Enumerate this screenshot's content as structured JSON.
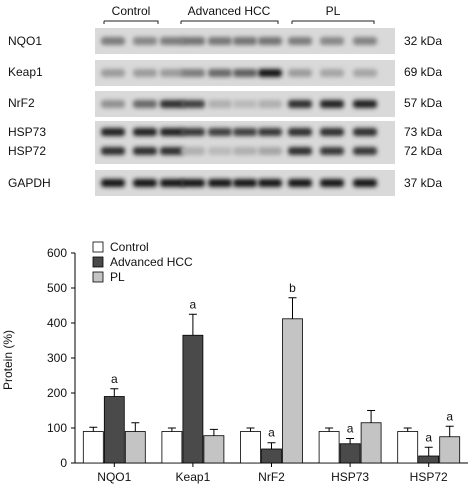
{
  "blot": {
    "groups": [
      "Control",
      "Advanced HCC",
      "PL"
    ],
    "rows": [
      {
        "name": "NQO1",
        "kda": "32 kDa"
      },
      {
        "name": "Keap1",
        "kda": "69 kDa"
      },
      {
        "name": "NrF2",
        "kda": "57 kDa"
      },
      {
        "name": "HSP73",
        "kda": "73 kDa"
      },
      {
        "name": "HSP72",
        "kda": "72 kDa"
      },
      {
        "name": "GAPDH",
        "kda": "37 kDa"
      }
    ],
    "intensity": {
      "NQO1": [
        0.45,
        0.4,
        0.45,
        0.5,
        0.48,
        0.5,
        0.5,
        0.45,
        0.4,
        0.42
      ],
      "Keap1": [
        0.3,
        0.3,
        0.3,
        0.45,
        0.55,
        0.6,
        0.95,
        0.3,
        0.25,
        0.25
      ],
      "NrF2": [
        0.35,
        0.55,
        0.85,
        0.75,
        0.2,
        0.15,
        0.2,
        0.85,
        0.9,
        0.9
      ],
      "HSP73": [
        0.9,
        0.9,
        0.9,
        0.8,
        0.75,
        0.75,
        0.8,
        0.85,
        0.85,
        0.85
      ],
      "HSP72": [
        0.85,
        0.85,
        0.85,
        0.2,
        0.15,
        0.2,
        0.25,
        0.85,
        0.8,
        0.8
      ],
      "GAPDH": [
        0.95,
        0.95,
        0.95,
        0.95,
        0.95,
        0.95,
        0.95,
        0.95,
        0.95,
        0.95
      ]
    }
  },
  "chart_data": {
    "type": "bar",
    "categories": [
      "NQO1",
      "Keap1",
      "NrF2",
      "HSP73",
      "HSP72"
    ],
    "series": [
      {
        "name": "Control",
        "values": [
          90,
          90,
          90,
          90,
          90
        ],
        "errors": [
          12,
          10,
          10,
          10,
          10
        ],
        "color": "#ffffff"
      },
      {
        "name": "Advanced HCC",
        "values": [
          190,
          365,
          40,
          55,
          20
        ],
        "errors": [
          22,
          60,
          18,
          15,
          25
        ],
        "color": "#4a4a4a"
      },
      {
        "name": "PL",
        "values": [
          90,
          78,
          412,
          115,
          75
        ],
        "errors": [
          25,
          18,
          60,
          35,
          30
        ],
        "color": "#c4c4c4"
      }
    ],
    "annotations": [
      {
        "category": "NQO1",
        "series": "Advanced HCC",
        "text": "a"
      },
      {
        "category": "Keap1",
        "series": "Advanced HCC",
        "text": "a"
      },
      {
        "category": "NrF2",
        "series": "Advanced HCC",
        "text": "a"
      },
      {
        "category": "NrF2",
        "series": "PL",
        "text": "b"
      },
      {
        "category": "HSP73",
        "series": "Advanced HCC",
        "text": "a"
      },
      {
        "category": "HSP72",
        "series": "Advanced HCC",
        "text": "a"
      },
      {
        "category": "HSP72",
        "series": "PL",
        "text": "a"
      }
    ],
    "ylabel": "Protein (%)",
    "ylim": [
      0,
      600
    ],
    "yticks": [
      0,
      100,
      200,
      300,
      400,
      500,
      600
    ],
    "legend": "top-left",
    "grid": false
  }
}
